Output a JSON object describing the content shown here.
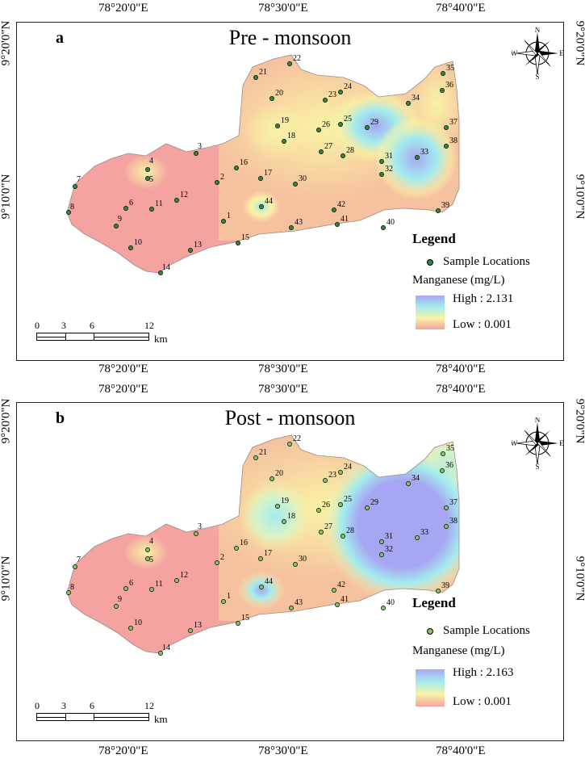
{
  "panels": [
    {
      "label": "a",
      "title": "Pre - monsoon",
      "legend": {
        "heading": "Legend",
        "samples": "Sample Locations",
        "variable": "Manganese (mg/L)",
        "high": "High : 2.131",
        "low": "Low : 0.001"
      }
    },
    {
      "label": "b",
      "title": "Post - monsoon",
      "legend": {
        "heading": "Legend",
        "samples": "Sample Locations",
        "variable": "Manganese (mg/L)",
        "high": "High : 2.163",
        "low": "Low : 0.001"
      }
    }
  ],
  "longitude_ticks": [
    "78°20'0\"E",
    "78°30'0\"E",
    "78°40'0\"E"
  ],
  "latitude_ticks": [
    "9°20'0\"N",
    "9°10'0\"N"
  ],
  "scale_bar": {
    "ticks": [
      "0",
      "3",
      "6",
      "12"
    ],
    "unit": "km"
  },
  "compass": {
    "n": "N",
    "s": "S",
    "e": "E",
    "w": "W"
  },
  "colors": {
    "low": "#f4a3a0",
    "mid": "#f9f3a5",
    "cyan": "#a3ecee",
    "high": "#a7a6f2",
    "point_pre": "#2f8a3d",
    "point_post": "#7ec860"
  },
  "sample_ids": [
    "1",
    "2",
    "3",
    "4",
    "5",
    "6",
    "7",
    "8",
    "9",
    "10",
    "11",
    "12",
    "13",
    "14",
    "15",
    "16",
    "17",
    "18",
    "19",
    "20",
    "21",
    "22",
    "23",
    "24",
    "25",
    "26",
    "27",
    "28",
    "29",
    "30",
    "31",
    "32",
    "33",
    "34",
    "35",
    "36",
    "37",
    "38",
    "39",
    "40",
    "41",
    "42",
    "43",
    "44"
  ]
}
